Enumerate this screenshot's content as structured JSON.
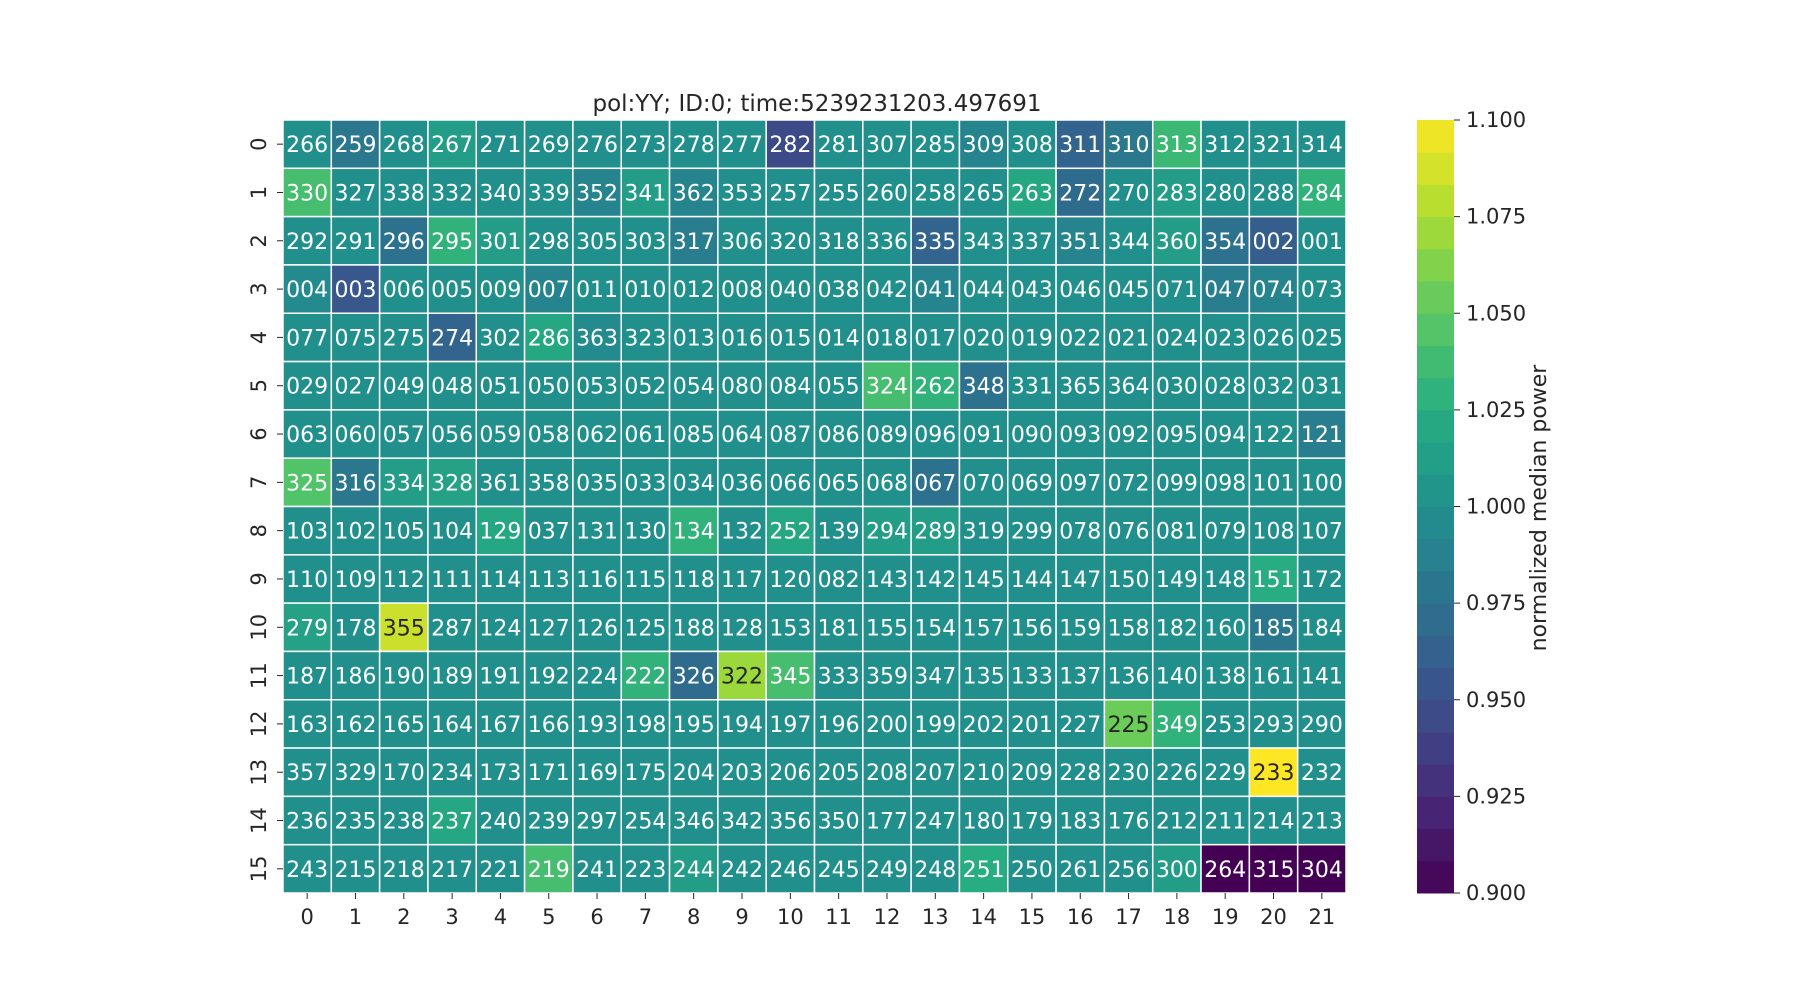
{
  "chart_data": {
    "type": "heatmap",
    "title": "pol:YY; ID:0; time:5239231203.497691",
    "x_tick_labels": [
      "0",
      "1",
      "2",
      "3",
      "4",
      "5",
      "6",
      "7",
      "8",
      "9",
      "10",
      "11",
      "12",
      "13",
      "14",
      "15",
      "16",
      "17",
      "18",
      "19",
      "20",
      "21"
    ],
    "y_tick_labels": [
      "0",
      "1",
      "2",
      "3",
      "4",
      "5",
      "6",
      "7",
      "8",
      "9",
      "10",
      "11",
      "12",
      "13",
      "14",
      "15"
    ],
    "cell_labels": [
      [
        "266",
        "259",
        "268",
        "267",
        "271",
        "269",
        "276",
        "273",
        "278",
        "277",
        "282",
        "281",
        "307",
        "285",
        "309",
        "308",
        "311",
        "310",
        "313",
        "312",
        "321",
        "314"
      ],
      [
        "330",
        "327",
        "338",
        "332",
        "340",
        "339",
        "352",
        "341",
        "362",
        "353",
        "257",
        "255",
        "260",
        "258",
        "265",
        "263",
        "272",
        "270",
        "283",
        "280",
        "288",
        "284"
      ],
      [
        "292",
        "291",
        "296",
        "295",
        "301",
        "298",
        "305",
        "303",
        "317",
        "306",
        "320",
        "318",
        "336",
        "335",
        "343",
        "337",
        "351",
        "344",
        "360",
        "354",
        "002",
        "001"
      ],
      [
        "004",
        "003",
        "006",
        "005",
        "009",
        "007",
        "011",
        "010",
        "012",
        "008",
        "040",
        "038",
        "042",
        "041",
        "044",
        "043",
        "046",
        "045",
        "071",
        "047",
        "074",
        "073"
      ],
      [
        "077",
        "075",
        "275",
        "274",
        "302",
        "286",
        "363",
        "323",
        "013",
        "016",
        "015",
        "014",
        "018",
        "017",
        "020",
        "019",
        "022",
        "021",
        "024",
        "023",
        "026",
        "025"
      ],
      [
        "029",
        "027",
        "049",
        "048",
        "051",
        "050",
        "053",
        "052",
        "054",
        "080",
        "084",
        "055",
        "324",
        "262",
        "348",
        "331",
        "365",
        "364",
        "030",
        "028",
        "032",
        "031"
      ],
      [
        "063",
        "060",
        "057",
        "056",
        "059",
        "058",
        "062",
        "061",
        "085",
        "064",
        "087",
        "086",
        "089",
        "096",
        "091",
        "090",
        "093",
        "092",
        "095",
        "094",
        "122",
        "121"
      ],
      [
        "325",
        "316",
        "334",
        "328",
        "361",
        "358",
        "035",
        "033",
        "034",
        "036",
        "066",
        "065",
        "068",
        "067",
        "070",
        "069",
        "097",
        "072",
        "099",
        "098",
        "101",
        "100"
      ],
      [
        "103",
        "102",
        "105",
        "104",
        "129",
        "037",
        "131",
        "130",
        "134",
        "132",
        "252",
        "139",
        "294",
        "289",
        "319",
        "299",
        "078",
        "076",
        "081",
        "079",
        "108",
        "107"
      ],
      [
        "110",
        "109",
        "112",
        "111",
        "114",
        "113",
        "116",
        "115",
        "118",
        "117",
        "120",
        "082",
        "143",
        "142",
        "145",
        "144",
        "147",
        "150",
        "149",
        "148",
        "151",
        "172"
      ],
      [
        "279",
        "178",
        "355",
        "287",
        "124",
        "127",
        "126",
        "125",
        "188",
        "128",
        "153",
        "181",
        "155",
        "154",
        "157",
        "156",
        "159",
        "158",
        "182",
        "160",
        "185",
        "184"
      ],
      [
        "187",
        "186",
        "190",
        "189",
        "191",
        "192",
        "224",
        "222",
        "326",
        "322",
        "345",
        "333",
        "359",
        "347",
        "135",
        "133",
        "137",
        "136",
        "140",
        "138",
        "161",
        "141"
      ],
      [
        "163",
        "162",
        "165",
        "164",
        "167",
        "166",
        "193",
        "198",
        "195",
        "194",
        "197",
        "196",
        "200",
        "199",
        "202",
        "201",
        "227",
        "225",
        "349",
        "253",
        "293",
        "290"
      ],
      [
        "357",
        "329",
        "170",
        "234",
        "173",
        "171",
        "169",
        "175",
        "204",
        "203",
        "206",
        "205",
        "208",
        "207",
        "210",
        "209",
        "228",
        "230",
        "226",
        "229",
        "233",
        "232"
      ],
      [
        "236",
        "235",
        "238",
        "237",
        "240",
        "239",
        "297",
        "254",
        "346",
        "342",
        "356",
        "350",
        "177",
        "247",
        "180",
        "179",
        "183",
        "176",
        "212",
        "211",
        "214",
        "213"
      ],
      [
        "243",
        "215",
        "218",
        "217",
        "221",
        "219",
        "241",
        "223",
        "244",
        "242",
        "246",
        "245",
        "249",
        "248",
        "251",
        "250",
        "261",
        "256",
        "300",
        "264",
        "315",
        "304"
      ]
    ],
    "values": [
      [
        1.0,
        0.98,
        1.0,
        1.01,
        1.0,
        1.0,
        1.0,
        1.0,
        1.0,
        1.0,
        0.945,
        1.0,
        1.0,
        1.0,
        0.99,
        1.0,
        0.965,
        0.98,
        1.035,
        1.0,
        1.0,
        1.0
      ],
      [
        1.04,
        1.0,
        1.0,
        1.0,
        1.0,
        1.0,
        0.99,
        1.01,
        0.99,
        1.0,
        1.0,
        1.0,
        1.0,
        1.0,
        1.0,
        1.02,
        0.97,
        1.0,
        1.01,
        1.0,
        1.0,
        1.03
      ],
      [
        1.0,
        1.0,
        0.975,
        1.03,
        1.01,
        1.0,
        1.0,
        1.0,
        0.985,
        1.0,
        1.0,
        1.0,
        1.0,
        0.965,
        1.0,
        1.0,
        0.99,
        1.0,
        1.01,
        0.975,
        0.96,
        1.0
      ],
      [
        0.995,
        0.955,
        1.0,
        1.0,
        1.0,
        0.99,
        1.0,
        1.0,
        1.0,
        1.0,
        1.0,
        1.0,
        1.0,
        0.99,
        1.0,
        1.0,
        1.0,
        1.0,
        1.0,
        0.985,
        0.99,
        1.0
      ],
      [
        1.0,
        1.0,
        1.0,
        0.965,
        1.0,
        1.02,
        0.995,
        1.0,
        1.0,
        1.0,
        1.0,
        1.0,
        1.0,
        1.0,
        1.0,
        1.0,
        1.0,
        1.0,
        1.0,
        1.0,
        1.0,
        1.0
      ],
      [
        1.0,
        1.0,
        1.0,
        1.0,
        1.0,
        1.0,
        1.0,
        1.0,
        1.0,
        1.0,
        1.0,
        1.0,
        1.04,
        1.03,
        0.975,
        1.0,
        1.0,
        1.0,
        1.0,
        1.0,
        1.0,
        1.0
      ],
      [
        1.0,
        1.0,
        1.0,
        1.0,
        1.0,
        1.0,
        1.0,
        1.0,
        1.0,
        1.0,
        1.0,
        1.0,
        1.0,
        1.0,
        1.0,
        1.0,
        1.0,
        1.0,
        1.0,
        1.0,
        1.0,
        0.985
      ],
      [
        1.045,
        0.98,
        1.01,
        1.015,
        1.0,
        1.0,
        1.0,
        1.0,
        1.0,
        1.0,
        1.0,
        1.0,
        1.0,
        0.975,
        1.0,
        1.0,
        1.0,
        1.0,
        1.0,
        1.0,
        1.0,
        1.0
      ],
      [
        1.0,
        1.0,
        1.0,
        1.0,
        1.02,
        1.0,
        1.0,
        1.0,
        1.03,
        1.0,
        1.02,
        1.0,
        1.01,
        1.01,
        1.0,
        1.0,
        1.0,
        1.0,
        1.0,
        1.0,
        1.0,
        1.0
      ],
      [
        1.0,
        1.0,
        1.0,
        1.0,
        1.0,
        1.0,
        1.0,
        1.0,
        1.0,
        1.0,
        1.0,
        1.0,
        1.0,
        1.0,
        1.0,
        1.0,
        1.0,
        1.0,
        1.0,
        1.0,
        1.025,
        1.0
      ],
      [
        1.015,
        1.0,
        1.085,
        1.0,
        1.0,
        1.0,
        1.0,
        1.0,
        1.0,
        1.0,
        1.0,
        1.0,
        1.0,
        1.0,
        1.0,
        1.0,
        1.0,
        1.0,
        1.0,
        1.0,
        0.98,
        1.0
      ],
      [
        1.0,
        1.0,
        1.0,
        1.0,
        1.0,
        1.0,
        1.0,
        1.03,
        0.97,
        1.07,
        1.04,
        1.0,
        1.0,
        1.0,
        1.0,
        1.0,
        1.0,
        1.0,
        1.0,
        1.0,
        1.0,
        1.0
      ],
      [
        1.0,
        1.0,
        1.0,
        1.0,
        1.0,
        1.0,
        1.0,
        1.0,
        1.0,
        1.0,
        1.0,
        1.0,
        1.0,
        1.0,
        1.0,
        1.0,
        1.0,
        1.055,
        1.03,
        1.0,
        1.0,
        1.0
      ],
      [
        1.0,
        1.0,
        1.0,
        1.0,
        1.0,
        1.0,
        1.0,
        1.0,
        1.0,
        1.0,
        1.0,
        1.0,
        1.0,
        1.0,
        1.0,
        1.0,
        1.0,
        1.0,
        1.0,
        1.0,
        1.1,
        1.0
      ],
      [
        1.0,
        1.0,
        1.0,
        1.02,
        1.0,
        1.0,
        1.0,
        1.0,
        1.0,
        1.0,
        1.0,
        1.0,
        1.0,
        1.0,
        1.0,
        1.0,
        1.0,
        1.0,
        1.0,
        1.0,
        1.0,
        1.0
      ],
      [
        1.0,
        1.0,
        1.0,
        1.0,
        1.0,
        1.04,
        1.0,
        1.0,
        1.01,
        1.0,
        1.0,
        1.0,
        1.0,
        1.0,
        1.025,
        1.0,
        1.0,
        1.0,
        1.01,
        0.9,
        0.9,
        0.9
      ]
    ],
    "vmin": 0.9,
    "vmax": 1.1,
    "colormap": "viridis",
    "colorbar": {
      "label": "normalized median power",
      "ticks": [
        "0.900",
        "0.925",
        "0.950",
        "0.975",
        "1.000",
        "1.025",
        "1.050",
        "1.075",
        "1.100"
      ],
      "tick_values": [
        0.9,
        0.925,
        0.95,
        0.975,
        1.0,
        1.025,
        1.05,
        1.075,
        1.1
      ],
      "levels": 24
    },
    "grid": false,
    "cell_borders": "#ffffff",
    "annotation_colors": {
      "light": "#ffffff",
      "dark": "#262626"
    }
  }
}
